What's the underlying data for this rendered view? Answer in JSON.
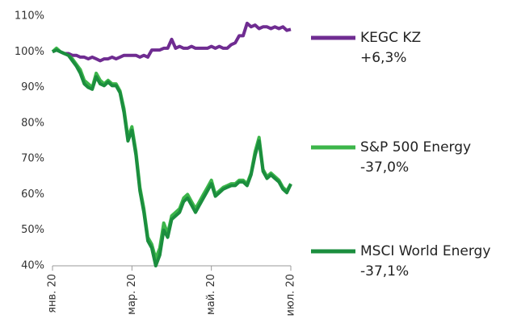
{
  "chart_data": {
    "type": "line",
    "categories": [
      "янв. 20",
      null,
      null,
      null,
      null,
      null,
      null,
      null,
      null,
      null,
      null,
      null,
      null,
      null,
      null,
      null,
      null,
      null,
      null,
      null,
      "мар. 20",
      null,
      null,
      null,
      null,
      null,
      null,
      null,
      null,
      null,
      null,
      null,
      null,
      null,
      null,
      null,
      null,
      null,
      null,
      null,
      "май. 20",
      null,
      null,
      null,
      null,
      null,
      null,
      null,
      null,
      null,
      null,
      null,
      null,
      null,
      null,
      null,
      null,
      null,
      null,
      null,
      "июл. 20"
    ],
    "series": [
      {
        "name": "KEGC KZ",
        "change": "+6,3%",
        "color": "#6f2c91",
        "values": [
          100,
          100.5,
          100,
          99.5,
          99.5,
          99,
          99,
          98.5,
          98.5,
          98,
          98.5,
          98,
          97.5,
          98,
          98,
          98.5,
          98,
          98.5,
          99,
          99,
          99,
          99,
          98.5,
          99,
          98.5,
          100.5,
          100.5,
          100.5,
          101,
          101,
          103.5,
          101,
          101.5,
          101,
          101,
          101.5,
          101,
          101,
          101,
          101,
          101.5,
          101,
          101.5,
          101,
          101,
          102,
          102.5,
          104.5,
          104.5,
          108,
          107,
          107.5,
          106.5,
          107,
          107,
          106.5,
          107,
          106.5,
          107,
          106,
          106.3
        ]
      },
      {
        "name": "S&P 500 Energy",
        "change": "-37,0%",
        "color": "#3cb54a",
        "values": [
          100,
          101,
          100,
          99.5,
          99,
          98,
          96.5,
          95,
          92,
          91,
          90,
          94,
          92,
          91,
          92,
          91,
          91,
          89,
          84,
          76,
          79,
          72,
          62,
          56,
          48,
          46,
          42,
          45,
          52,
          49,
          54,
          55,
          56,
          59,
          60,
          58,
          56,
          58,
          60,
          62,
          64,
          60,
          61,
          62,
          62.5,
          63,
          63,
          64,
          64,
          63,
          66,
          72,
          76,
          67,
          65,
          66,
          65,
          64,
          62,
          61,
          63
        ]
      },
      {
        "name": "MSCI World Energy",
        "change": "-37,1%",
        "color": "#1b8e3e",
        "values": [
          100,
          100.5,
          100,
          99.5,
          99,
          97.5,
          96,
          94,
          91,
          90,
          89.5,
          93,
          91,
          90.5,
          91.5,
          90.5,
          90.5,
          88.5,
          83,
          75,
          78,
          71,
          61,
          55,
          47,
          45,
          40,
          43,
          50,
          48,
          53,
          54,
          55,
          58,
          59,
          57,
          55,
          57,
          59,
          61,
          63,
          59.5,
          60.5,
          61.5,
          62,
          62.5,
          62.5,
          63.5,
          63.5,
          62.5,
          65.5,
          71,
          75,
          66.5,
          64.5,
          65.5,
          64.5,
          63.5,
          61.5,
          60.5,
          62.9
        ]
      }
    ],
    "ylim": [
      40,
      110
    ],
    "yticks": [
      {
        "value": 40,
        "label": "40%"
      },
      {
        "value": 50,
        "label": "50%"
      },
      {
        "value": 60,
        "label": "60%"
      },
      {
        "value": 70,
        "label": "70%"
      },
      {
        "value": 80,
        "label": "80%"
      },
      {
        "value": 90,
        "label": "90%"
      },
      {
        "value": 100,
        "label": "100%"
      },
      {
        "value": 110,
        "label": "110%"
      }
    ]
  }
}
